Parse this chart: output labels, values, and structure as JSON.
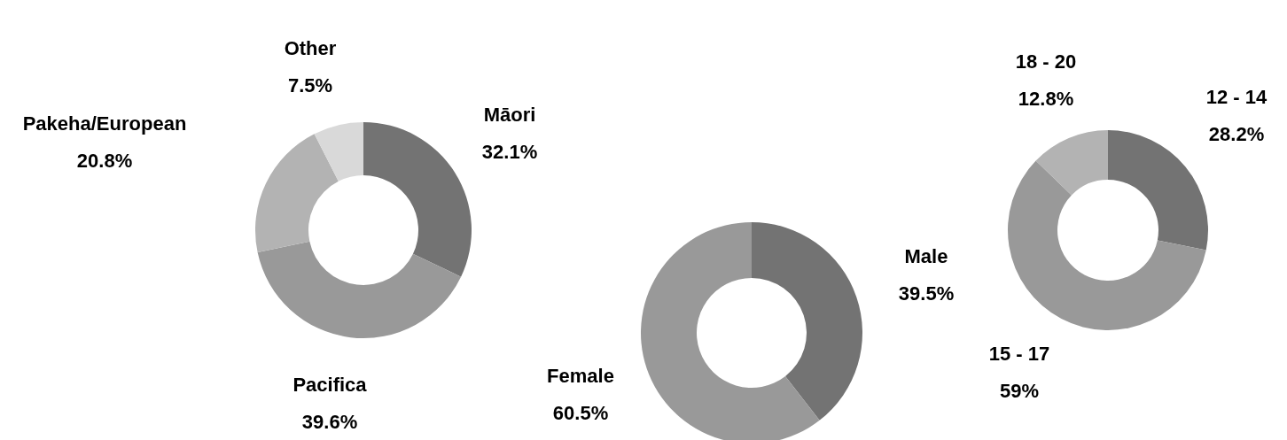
{
  "chart_data": [
    {
      "type": "donut",
      "categories": [
        "Māori",
        "Pacifica",
        "Pakeha/European",
        "Other"
      ],
      "values": [
        32.1,
        39.6,
        20.8,
        7.5
      ],
      "value_labels": [
        "32.1%",
        "39.6%",
        "20.8%",
        "7.5%"
      ],
      "colors": [
        "#737373",
        "#999999",
        "#b3b3b3",
        "#d9d9d9"
      ],
      "legend": false
    },
    {
      "type": "donut",
      "categories": [
        "Male",
        "Female"
      ],
      "values": [
        39.5,
        60.5
      ],
      "value_labels": [
        "39.5%",
        "60.5%"
      ],
      "colors": [
        "#737373",
        "#999999"
      ],
      "legend": false
    },
    {
      "type": "donut",
      "categories": [
        "12 - 14",
        "15 - 17",
        "18 - 20"
      ],
      "values": [
        28.2,
        59,
        12.8
      ],
      "value_labels": [
        "28.2%",
        "59%",
        "12.8%"
      ],
      "colors": [
        "#737373",
        "#999999",
        "#b3b3b3"
      ],
      "legend": false
    }
  ]
}
